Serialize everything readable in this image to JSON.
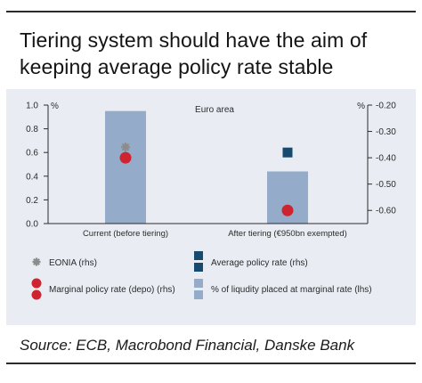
{
  "header": {
    "title_line1": "Tiering system should have the aim of",
    "title_line2": "keeping average policy rate stable"
  },
  "chart_data": {
    "type": "bar",
    "title": "Euro area",
    "categories": [
      "Current (before tiering)",
      "After tiering (€950bn exempted)"
    ],
    "left_axis": {
      "unit": "%",
      "ylim": [
        0.0,
        1.0
      ],
      "ticks": [
        "1.0",
        "0.8",
        "0.6",
        "0.4",
        "0.2",
        "0.0"
      ]
    },
    "right_axis": {
      "unit": "%",
      "ylim": [
        -0.65,
        -0.2
      ],
      "ticks": [
        "-0.20",
        "-0.30",
        "-0.40",
        "-0.50",
        "-0.60"
      ]
    },
    "series": [
      {
        "name": "% of liqudity placed at marginal rate (lhs)",
        "kind": "bar",
        "axis": "left",
        "color": "#94acc9",
        "values": [
          0.95,
          0.44
        ]
      },
      {
        "name": "Marginal policy rate (depo) (rhs)",
        "kind": "dot",
        "axis": "right",
        "color": "#cf2330",
        "values": [
          -0.4,
          -0.6
        ]
      },
      {
        "name": "Average policy rate (rhs)",
        "kind": "square",
        "axis": "right",
        "color": "#174a6e",
        "values": [
          null,
          -0.38
        ]
      },
      {
        "name": "EONIA (rhs)",
        "kind": "star",
        "axis": "right",
        "color": "#8c8c8c",
        "values": [
          -0.38,
          null
        ]
      }
    ],
    "legend": {
      "placement": "bottom",
      "items": [
        {
          "label": "EONIA (rhs)",
          "icon": "star",
          "color": "#8c8c8c"
        },
        {
          "label": "Average policy rate (rhs)",
          "icon": "square-pair",
          "color": "#174a6e"
        },
        {
          "label": "Marginal policy rate (depo) (rhs)",
          "icon": "dot-pair",
          "color": "#cf2330"
        },
        {
          "label": "% of liqudity placed at marginal rate (lhs)",
          "icon": "bar-pair",
          "color": "#94acc9"
        }
      ]
    },
    "grid": false
  },
  "footer": {
    "source": "Source: ECB, Macrobond Financial, Danske Bank"
  }
}
